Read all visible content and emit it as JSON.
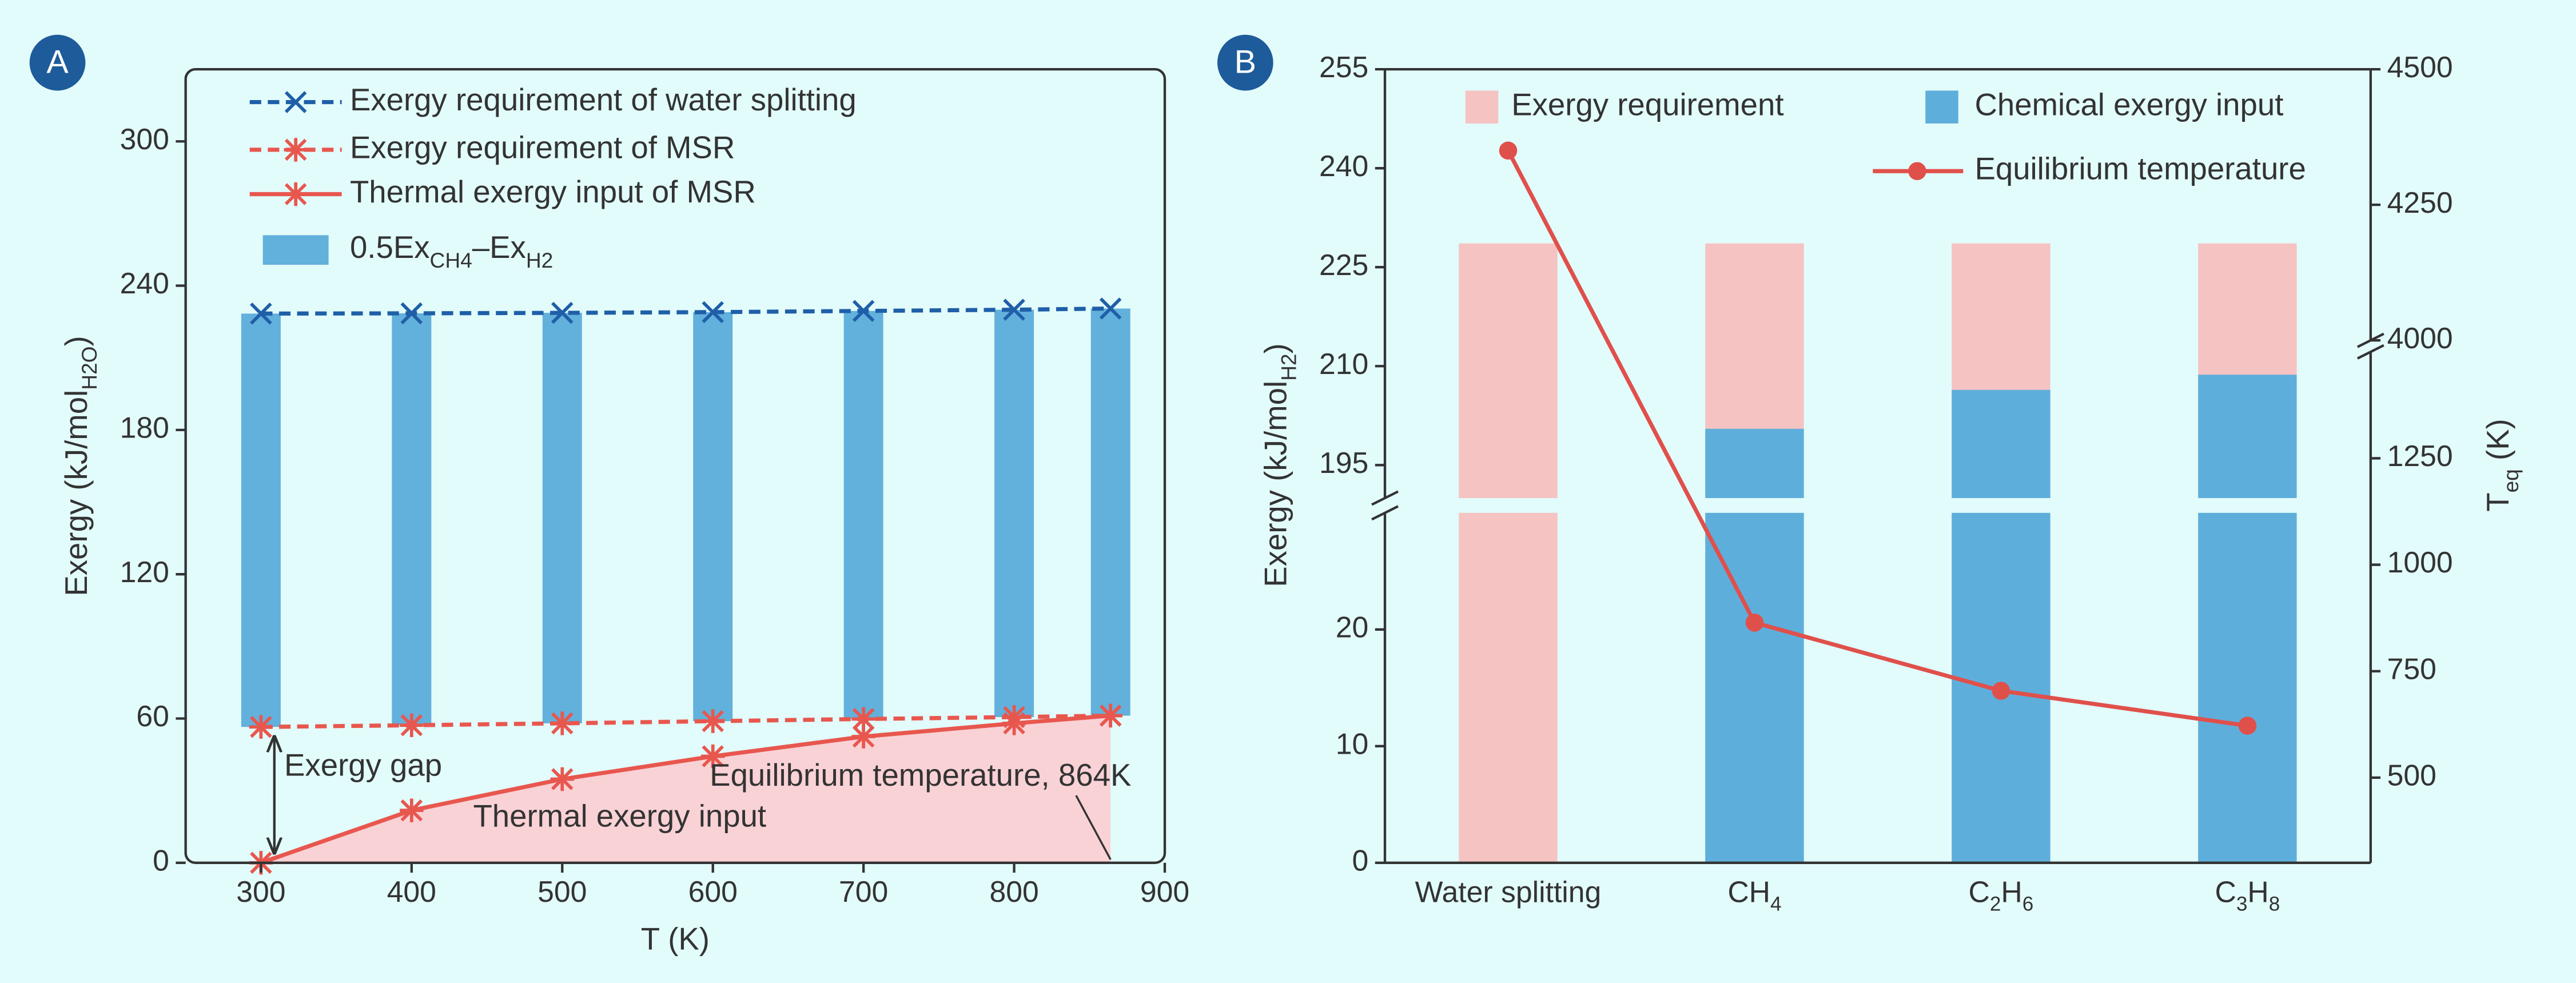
{
  "chart_data": [
    {
      "type": "line",
      "panel": "A",
      "xlabel": [
        "T (K)"
      ],
      "ylabel": [
        "Exergy (kJ/mol",
        "H2O",
        ")"
      ],
      "x": [
        300,
        400,
        500,
        600,
        700,
        800,
        864
      ],
      "xlim": [
        250,
        900
      ],
      "xticks": [
        300,
        400,
        500,
        600,
        700,
        800,
        900
      ],
      "ylim": [
        0,
        330
      ],
      "yticks": [
        0,
        60,
        120,
        180,
        240,
        300
      ],
      "series": [
        {
          "name": "Exergy requirement of water splitting",
          "color": "#1f5fa8",
          "dash": true,
          "marker": "x",
          "values": [
            228.4,
            228.5,
            228.7,
            229,
            229.5,
            230,
            230.5
          ]
        },
        {
          "name": "Exergy requirement of MSR",
          "color": "#e8574e",
          "dash": true,
          "marker": "asterisk",
          "values": [
            56.5,
            57.2,
            58,
            58.9,
            59.8,
            60.6,
            61.2
          ]
        },
        {
          "name": "Thermal exergy input of MSR",
          "color": "#e8574e",
          "dash": false,
          "marker": "asterisk",
          "area": "#f9d2d6",
          "values": [
            0,
            21.8,
            34.8,
            44.3,
            52.5,
            58,
            61.2
          ]
        },
        {
          "name": [
            "0.5Ex",
            "CH4",
            "–Ex",
            "H2"
          ],
          "type": "bar",
          "color": "#62b0dc",
          "base": [
            56.5,
            57.2,
            58,
            58.9,
            59.8,
            60.6,
            61.2
          ],
          "values": [
            228.4,
            228.5,
            228.7,
            229,
            229.5,
            230,
            230.5
          ]
        }
      ],
      "annotations": [
        "Exergy gap",
        "Thermal exergy input",
        "Equilibrium temperature, 864K"
      ]
    },
    {
      "type": "bar",
      "panel": "B",
      "overlay": true,
      "ylabel": [
        "Exergy (kJ/mol",
        "H2",
        ")"
      ],
      "y2label": [
        "T",
        "eq",
        " (K)"
      ],
      "categories": [
        [
          "Water splitting"
        ],
        [
          "CH",
          "4"
        ],
        [
          "C",
          "2",
          "H",
          "6"
        ],
        [
          "C",
          "3",
          "H",
          "8"
        ]
      ],
      "ylim": [
        0,
        255
      ],
      "ybreak": [
        30,
        190
      ],
      "yticks": [
        0,
        10,
        20,
        195,
        210,
        225,
        240,
        255
      ],
      "y2lim": [
        300,
        4500
      ],
      "y2break": [
        1500,
        4000
      ],
      "y2ticks": [
        500,
        750,
        1000,
        1250,
        4000,
        4250,
        4500
      ],
      "series": [
        {
          "name": "Exergy requirement",
          "color": "#f6c3c3",
          "values": [
            228.6,
            228.6,
            228.6,
            228.6
          ]
        },
        {
          "name": "Chemical exergy input",
          "color": "#5eaedb",
          "values": [
            0,
            200.5,
            206.4,
            208.7
          ]
        },
        {
          "name": "Equilibrium temperature",
          "type": "line",
          "axis": "y2",
          "color": "#e0504b",
          "marker": "circle",
          "values": [
            4350,
            864,
            704,
            622
          ]
        }
      ]
    }
  ]
}
